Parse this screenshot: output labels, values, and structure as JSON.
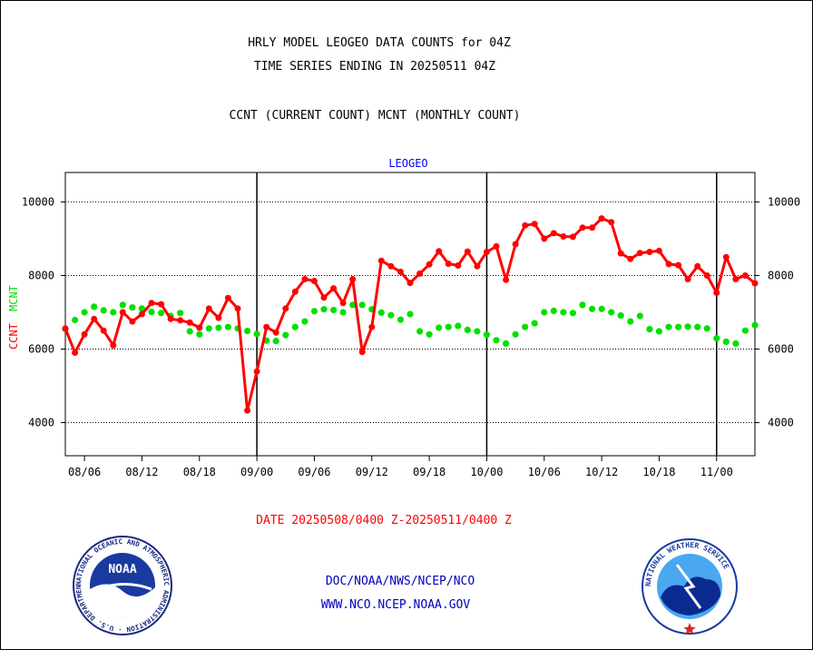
{
  "header": {
    "line1": "HRLY MODEL LEOGEO DATA COUNTS for 04Z",
    "line2": "TIME SERIES ENDING IN 20250511 04Z",
    "line3": "CCNT (CURRENT COUNT) MCNT (MONTHLY COUNT)"
  },
  "footer": {
    "date_range": "DATE 20250508/0400 Z-20250511/0400 Z",
    "org_path": "DOC/NOAA/NWS/NCEP/NCO",
    "website": "WWW.NCO.NCEP.NOAA.GOV",
    "noaa_logo_text": "NOAA",
    "noaa_ring_text": "NATIONAL OCEANIC AND ATMOSPHERIC ADMINISTRATION · U.S. DEPARTMENT OF COMMERCE",
    "nws_ring_text": "NATIONAL WEATHER SERVICE"
  },
  "colors": {
    "ccnt": "#ff0000",
    "mcnt": "#00e000",
    "subtitle": "#0000ff",
    "date_text": "#ff0000",
    "link_text": "#0000c0"
  },
  "chart_data": {
    "type": "line",
    "title": "LEOGEO",
    "ylabel_ccnt": "CCNT",
    "ylabel_mcnt": "MCNT",
    "ylim": [
      3100,
      10800
    ],
    "yticks": [
      4000,
      6000,
      8000,
      10000
    ],
    "day_separators": [
      "09/00",
      "10/00",
      "11/00"
    ],
    "xtick_labels": [
      "08/06",
      "08/12",
      "08/18",
      "09/00",
      "09/06",
      "09/12",
      "09/18",
      "10/00",
      "10/06",
      "10/12",
      "10/18",
      "11/00"
    ],
    "grid": true,
    "x_hours": [
      0,
      1,
      2,
      3,
      4,
      5,
      6,
      7,
      8,
      9,
      10,
      11,
      12,
      13,
      14,
      15,
      16,
      17,
      18,
      19,
      20,
      21,
      22,
      23,
      24,
      25,
      26,
      27,
      28,
      29,
      30,
      31,
      32,
      33,
      34,
      35,
      36,
      37,
      38,
      39,
      40,
      41,
      42,
      43,
      44,
      45,
      46,
      47,
      48,
      49,
      50,
      51,
      52,
      53,
      54,
      55,
      56,
      57,
      58,
      59,
      60,
      61,
      62,
      63,
      64,
      65,
      66,
      67,
      68,
      69,
      70,
      71,
      72
    ],
    "series": [
      {
        "name": "CCNT",
        "values": [
          6560,
          5900,
          6400,
          6820,
          6500,
          6100,
          7000,
          6750,
          6950,
          7250,
          7220,
          6820,
          6780,
          6720,
          6580,
          7100,
          6850,
          7390,
          7100,
          4330,
          5390,
          6600,
          6450,
          7100,
          7560,
          7900,
          7850,
          7400,
          7650,
          7250,
          7900,
          5920,
          6600,
          8400,
          8250,
          8100,
          7800,
          8050,
          8300,
          8660,
          8320,
          8270,
          8650,
          8250,
          8640,
          8790,
          7880,
          8850,
          9360,
          9400,
          9000,
          9150,
          9060,
          9050,
          9300,
          9300,
          9550,
          9450,
          8600,
          8450,
          8610,
          8640,
          8670,
          8310,
          8280,
          7900,
          8250,
          8000,
          7530,
          8500,
          7900,
          8000,
          7790
        ]
      },
      {
        "name": "MCNT",
        "values": [
          6550,
          6790,
          7000,
          7150,
          7050,
          7000,
          7200,
          7130,
          7100,
          7010,
          6980,
          6900,
          6980,
          6480,
          6400,
          6560,
          6580,
          6600,
          6560,
          6490,
          6410,
          6230,
          6220,
          6380,
          6600,
          6750,
          7030,
          7080,
          7060,
          7000,
          7200,
          7200,
          7080,
          6990,
          6920,
          6800,
          6950,
          6480,
          6400,
          6580,
          6600,
          6630,
          6520,
          6480,
          6390,
          6240,
          6150,
          6400,
          6600,
          6700,
          7000,
          7040,
          7000,
          6980,
          7200,
          7090,
          7090,
          7000,
          6910,
          6750,
          6900,
          6540,
          6480,
          6600,
          6600,
          6610,
          6600,
          6560,
          6290,
          6200,
          6150,
          6500,
          6650
        ]
      }
    ]
  }
}
